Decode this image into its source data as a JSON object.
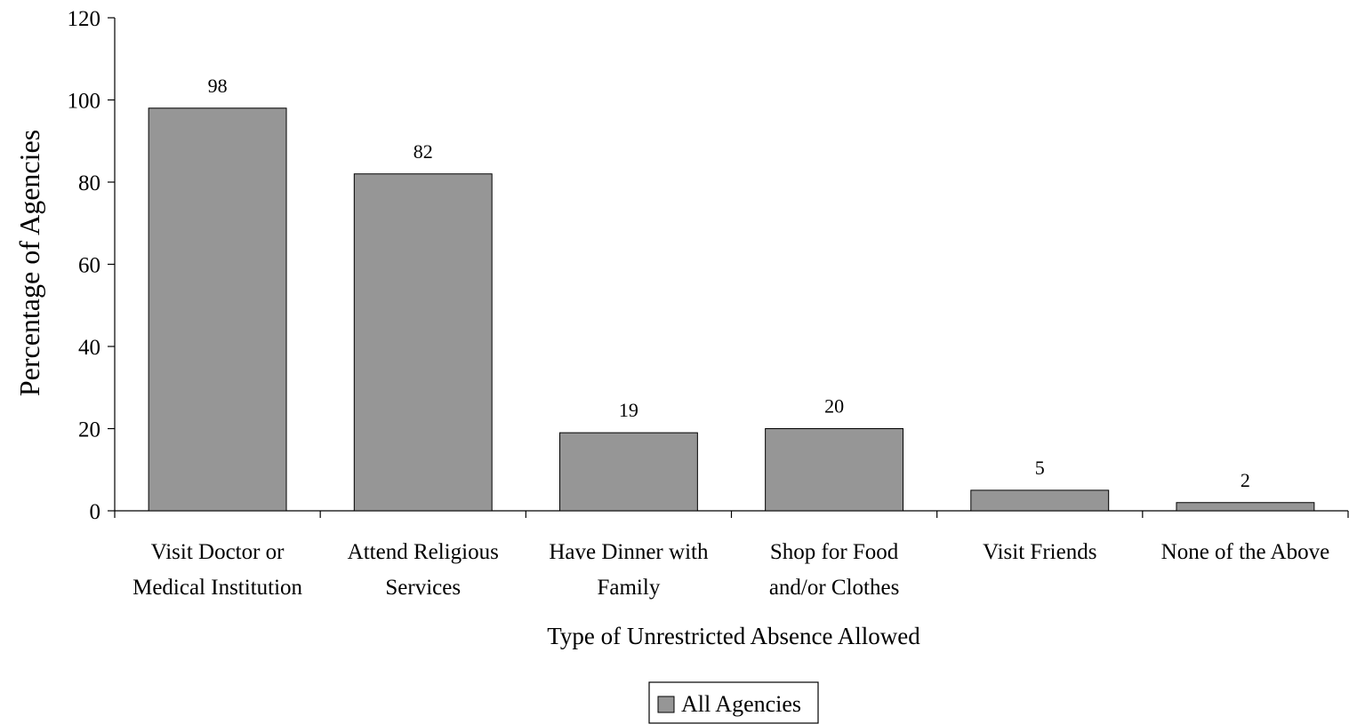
{
  "chart_data": {
    "type": "bar",
    "categories": [
      [
        "Visit Doctor or",
        "Medical Institution"
      ],
      [
        "Attend Religious",
        "Services"
      ],
      [
        "Have Dinner with",
        "Family"
      ],
      [
        "Shop for Food",
        "and/or Clothes"
      ],
      [
        "Visit Friends"
      ],
      [
        "None of the Above"
      ]
    ],
    "series": [
      {
        "name": "All Agencies",
        "values": [
          98,
          82,
          19,
          20,
          5,
          2
        ],
        "color": "#969696"
      }
    ],
    "data_labels": [
      "98",
      "82",
      "19",
      "20",
      "5",
      "2"
    ],
    "xlabel": "Type of Unrestricted Absence Allowed",
    "ylabel": "Percentage of Agencies",
    "ylim": [
      0,
      120
    ],
    "yticks": [
      0,
      20,
      40,
      60,
      80,
      100,
      120
    ],
    "ytick_labels": [
      "0",
      "20",
      "40",
      "60",
      "80",
      "100",
      "120"
    ],
    "grid": false,
    "legend_position": "bottom-center"
  }
}
